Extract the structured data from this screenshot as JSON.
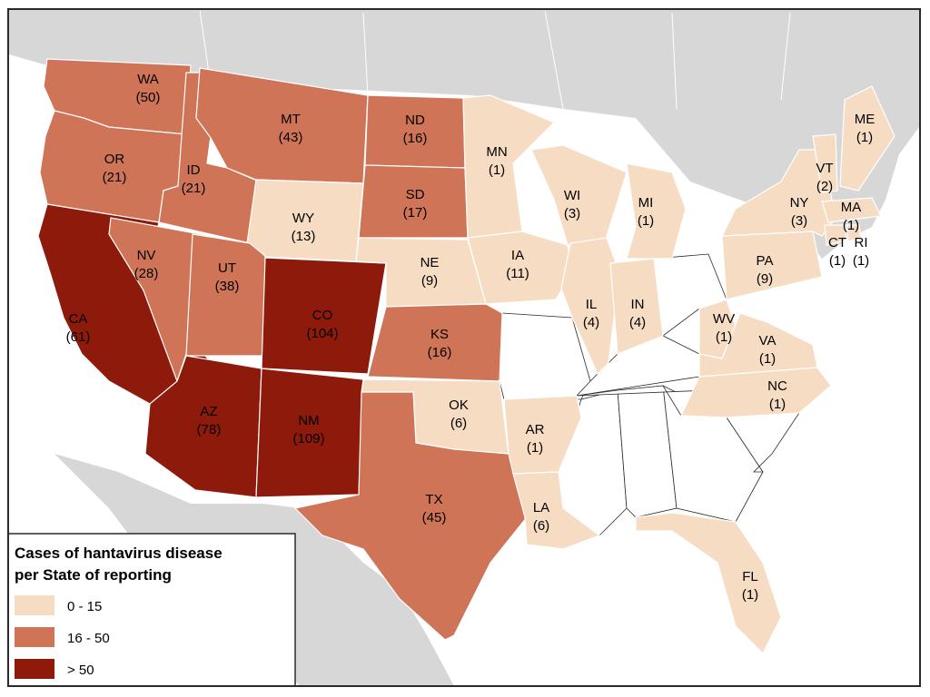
{
  "colors": {
    "sea": "#ffffff",
    "land_bg": "#d7d7d7",
    "unshaded": "#ffffff",
    "border": "#2a2a2a"
  },
  "legend": {
    "title_line1": "Cases of hantavirus disease",
    "title_line2": "per State of reporting",
    "classes": [
      {
        "label": "0 - 15",
        "color": "#f6dcc3"
      },
      {
        "label": "16 - 50",
        "color": "#cf7457"
      },
      {
        "label": "> 50",
        "color": "#8e1a0b"
      }
    ]
  },
  "states": [
    {
      "abbr": "WA",
      "value": "(50)"
    },
    {
      "abbr": "OR",
      "value": "(21)"
    },
    {
      "abbr": "CA",
      "value": "(61)"
    },
    {
      "abbr": "ID",
      "value": "(21)"
    },
    {
      "abbr": "NV",
      "value": "(28)"
    },
    {
      "abbr": "MT",
      "value": "(43)"
    },
    {
      "abbr": "WY",
      "value": "(13)"
    },
    {
      "abbr": "UT",
      "value": "(38)"
    },
    {
      "abbr": "CO",
      "value": "(104)"
    },
    {
      "abbr": "AZ",
      "value": "(78)"
    },
    {
      "abbr": "NM",
      "value": "(109)"
    },
    {
      "abbr": "ND",
      "value": "(16)"
    },
    {
      "abbr": "SD",
      "value": "(17)"
    },
    {
      "abbr": "NE",
      "value": "(9)"
    },
    {
      "abbr": "KS",
      "value": "(16)"
    },
    {
      "abbr": "OK",
      "value": "(6)"
    },
    {
      "abbr": "TX",
      "value": "(45)"
    },
    {
      "abbr": "MN",
      "value": "(1)"
    },
    {
      "abbr": "IA",
      "value": "(11)"
    },
    {
      "abbr": "AR",
      "value": "(1)"
    },
    {
      "abbr": "LA",
      "value": "(6)"
    },
    {
      "abbr": "WI",
      "value": "(3)"
    },
    {
      "abbr": "IL",
      "value": "(4)"
    },
    {
      "abbr": "IN",
      "value": "(4)"
    },
    {
      "abbr": "MI",
      "value": "(1)"
    },
    {
      "abbr": "WV",
      "value": "(1)"
    },
    {
      "abbr": "VA",
      "value": "(1)"
    },
    {
      "abbr": "NC",
      "value": "(1)"
    },
    {
      "abbr": "PA",
      "value": "(9)"
    },
    {
      "abbr": "NY",
      "value": "(3)"
    },
    {
      "abbr": "VT",
      "value": "(2)"
    },
    {
      "abbr": "ME",
      "value": "(1)"
    },
    {
      "abbr": "MA",
      "value": "(1)"
    },
    {
      "abbr": "CT",
      "value": "(1)"
    },
    {
      "abbr": "RI",
      "value": "(1)"
    },
    {
      "abbr": "FL",
      "value": "(1)"
    }
  ]
}
